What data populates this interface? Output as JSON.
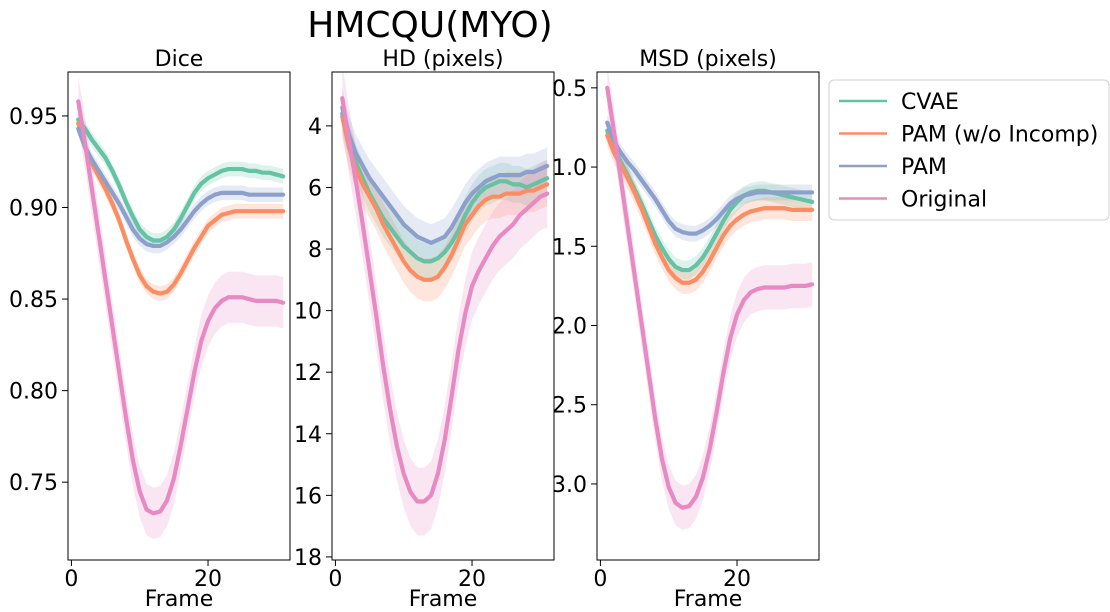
{
  "figure": {
    "suptitle": "HMCQU(MYO)"
  },
  "legend": {
    "placement": "right",
    "entries": [
      {
        "name": "CVAE",
        "color": "#66c2a5"
      },
      {
        "name": "PAM (w/o Incomp)",
        "color": "#fc8d62"
      },
      {
        "name": "PAM",
        "color": "#8da0cb"
      },
      {
        "name": "Original",
        "color": "#e78ac3"
      }
    ]
  },
  "chart_data": [
    {
      "type": "line",
      "title": "Dice",
      "xlabel": "Frame",
      "ylabel": "",
      "xlim": [
        -0.5,
        32
      ],
      "ylim": [
        0.7075,
        0.974
      ],
      "y_inverted": false,
      "xticks": [
        0,
        20
      ],
      "xtick_labels": [
        "0",
        "20"
      ],
      "yticks": [
        0.75,
        0.8,
        0.85,
        0.9,
        0.95
      ],
      "ytick_labels": [
        "0.75",
        "0.80",
        "0.85",
        "0.90",
        "0.95"
      ],
      "grid": false,
      "x": [
        1,
        2,
        3,
        4,
        5,
        6,
        7,
        8,
        9,
        10,
        11,
        12,
        13,
        14,
        15,
        16,
        17,
        18,
        19,
        20,
        21,
        22,
        23,
        24,
        25,
        26,
        27,
        28,
        29,
        30,
        31
      ],
      "series": [
        {
          "name": "CVAE",
          "color": "#66c2a5",
          "values": [
            0.948,
            0.943,
            0.937,
            0.932,
            0.927,
            0.92,
            0.912,
            0.903,
            0.895,
            0.888,
            0.884,
            0.882,
            0.882,
            0.884,
            0.888,
            0.894,
            0.901,
            0.908,
            0.913,
            0.916,
            0.918,
            0.92,
            0.921,
            0.921,
            0.921,
            0.92,
            0.92,
            0.919,
            0.919,
            0.918,
            0.917
          ],
          "band": 0.004
        },
        {
          "name": "PAM (w/o Incomp)",
          "color": "#fc8d62",
          "values": [
            0.946,
            0.933,
            0.924,
            0.917,
            0.91,
            0.902,
            0.893,
            0.882,
            0.872,
            0.863,
            0.857,
            0.854,
            0.853,
            0.854,
            0.858,
            0.864,
            0.871,
            0.878,
            0.884,
            0.89,
            0.893,
            0.896,
            0.897,
            0.898,
            0.898,
            0.898,
            0.898,
            0.898,
            0.898,
            0.898,
            0.898
          ],
          "band": 0.004
        },
        {
          "name": "PAM",
          "color": "#8da0cb",
          "values": [
            0.943,
            0.933,
            0.926,
            0.92,
            0.914,
            0.908,
            0.902,
            0.895,
            0.888,
            0.883,
            0.88,
            0.879,
            0.879,
            0.881,
            0.884,
            0.888,
            0.893,
            0.898,
            0.902,
            0.905,
            0.907,
            0.908,
            0.908,
            0.908,
            0.908,
            0.907,
            0.907,
            0.907,
            0.907,
            0.907,
            0.907
          ],
          "band": 0.004
        },
        {
          "name": "Original",
          "color": "#e78ac3",
          "values": [
            0.958,
            0.935,
            0.91,
            0.885,
            0.86,
            0.835,
            0.81,
            0.785,
            0.762,
            0.745,
            0.735,
            0.733,
            0.734,
            0.74,
            0.752,
            0.77,
            0.79,
            0.81,
            0.827,
            0.838,
            0.845,
            0.849,
            0.851,
            0.851,
            0.851,
            0.85,
            0.849,
            0.849,
            0.849,
            0.849,
            0.848
          ],
          "band": 0.014
        }
      ]
    },
    {
      "type": "line",
      "title": "HD (pixels)",
      "xlabel": "Frame",
      "ylabel": "",
      "xlim": [
        -0.5,
        32
      ],
      "ylim": [
        18.1,
        2.25
      ],
      "y_inverted": true,
      "xticks": [
        0,
        20
      ],
      "xtick_labels": [
        "0",
        "20"
      ],
      "yticks": [
        4,
        6,
        8,
        10,
        12,
        14,
        16,
        18
      ],
      "ytick_labels": [
        "4",
        "6",
        "8",
        "10",
        "12",
        "14",
        "16",
        "18"
      ],
      "grid": false,
      "x": [
        1,
        2,
        3,
        4,
        5,
        6,
        7,
        8,
        9,
        10,
        11,
        12,
        13,
        14,
        15,
        16,
        17,
        18,
        19,
        20,
        21,
        22,
        23,
        24,
        25,
        26,
        27,
        28,
        29,
        30,
        31
      ],
      "series": [
        {
          "name": "CVAE",
          "color": "#66c2a5",
          "values": [
            3.6,
            4.5,
            5.2,
            5.7,
            6.2,
            6.6,
            7.0,
            7.3,
            7.6,
            7.9,
            8.1,
            8.3,
            8.4,
            8.4,
            8.3,
            8.1,
            7.8,
            7.4,
            6.9,
            6.5,
            6.2,
            6.0,
            5.9,
            5.8,
            5.8,
            5.9,
            5.9,
            6.0,
            5.9,
            5.8,
            5.7
          ],
          "band": 0.6
        },
        {
          "name": "PAM (w/o Incomp)",
          "color": "#fc8d62",
          "values": [
            3.7,
            4.7,
            5.4,
            5.9,
            6.3,
            6.7,
            7.2,
            7.6,
            8.0,
            8.4,
            8.7,
            8.9,
            9.0,
            9.0,
            8.9,
            8.6,
            8.2,
            7.7,
            7.2,
            6.9,
            6.6,
            6.4,
            6.3,
            6.3,
            6.2,
            6.2,
            6.2,
            6.1,
            6.1,
            6.0,
            5.9
          ],
          "band": 0.7
        },
        {
          "name": "PAM",
          "color": "#8da0cb",
          "values": [
            3.4,
            4.3,
            4.9,
            5.3,
            5.7,
            6.0,
            6.3,
            6.6,
            6.9,
            7.2,
            7.4,
            7.6,
            7.7,
            7.8,
            7.7,
            7.6,
            7.3,
            6.9,
            6.5,
            6.2,
            6.0,
            5.8,
            5.7,
            5.6,
            5.6,
            5.6,
            5.6,
            5.5,
            5.5,
            5.4,
            5.3
          ],
          "band": 0.6
        },
        {
          "name": "Original",
          "color": "#e78ac3",
          "values": [
            3.1,
            4.5,
            5.8,
            7.2,
            8.7,
            10.2,
            11.8,
            13.2,
            14.4,
            15.3,
            15.9,
            16.2,
            16.2,
            16.0,
            15.3,
            14.2,
            12.8,
            11.3,
            10.1,
            9.2,
            8.7,
            8.3,
            7.9,
            7.6,
            7.4,
            7.2,
            6.9,
            6.7,
            6.5,
            6.3,
            6.2
          ],
          "band": 1.1
        }
      ]
    },
    {
      "type": "line",
      "title": "MSD (pixels)",
      "xlabel": "Frame",
      "ylabel": "",
      "xlim": [
        -0.5,
        32
      ],
      "ylim": [
        3.48,
        0.4
      ],
      "y_inverted": true,
      "xticks": [
        0,
        20
      ],
      "xtick_labels": [
        "0",
        "20"
      ],
      "yticks": [
        0.5,
        1.0,
        1.5,
        2.0,
        2.5,
        3.0
      ],
      "ytick_labels": [
        "0.5",
        "1.0",
        "1.5",
        "2.0",
        "2.5",
        "3.0"
      ],
      "grid": false,
      "x": [
        1,
        2,
        3,
        4,
        5,
        6,
        7,
        8,
        9,
        10,
        11,
        12,
        13,
        14,
        15,
        16,
        17,
        18,
        19,
        20,
        21,
        22,
        23,
        24,
        25,
        26,
        27,
        28,
        29,
        30,
        31
      ],
      "series": [
        {
          "name": "CVAE",
          "color": "#66c2a5",
          "values": [
            0.77,
            0.88,
            0.97,
            1.05,
            1.14,
            1.23,
            1.33,
            1.43,
            1.51,
            1.58,
            1.63,
            1.65,
            1.65,
            1.62,
            1.57,
            1.5,
            1.42,
            1.34,
            1.27,
            1.22,
            1.18,
            1.16,
            1.15,
            1.15,
            1.16,
            1.17,
            1.18,
            1.19,
            1.2,
            1.21,
            1.22
          ],
          "band": 0.06
        },
        {
          "name": "PAM (w/o Incomp)",
          "color": "#fc8d62",
          "values": [
            0.8,
            0.91,
            0.99,
            1.07,
            1.16,
            1.26,
            1.37,
            1.48,
            1.57,
            1.65,
            1.7,
            1.73,
            1.73,
            1.71,
            1.66,
            1.59,
            1.51,
            1.43,
            1.37,
            1.33,
            1.3,
            1.28,
            1.27,
            1.26,
            1.26,
            1.26,
            1.26,
            1.27,
            1.27,
            1.27,
            1.27
          ],
          "band": 0.07
        },
        {
          "name": "PAM",
          "color": "#8da0cb",
          "values": [
            0.72,
            0.84,
            0.91,
            0.97,
            1.02,
            1.08,
            1.14,
            1.2,
            1.27,
            1.34,
            1.39,
            1.41,
            1.42,
            1.42,
            1.4,
            1.37,
            1.33,
            1.28,
            1.23,
            1.2,
            1.18,
            1.17,
            1.16,
            1.16,
            1.16,
            1.16,
            1.16,
            1.16,
            1.16,
            1.16,
            1.16
          ],
          "band": 0.05
        },
        {
          "name": "Original",
          "color": "#e78ac3",
          "values": [
            0.5,
            0.78,
            1.08,
            1.38,
            1.68,
            1.98,
            2.28,
            2.58,
            2.84,
            3.02,
            3.12,
            3.15,
            3.14,
            3.08,
            2.96,
            2.78,
            2.55,
            2.3,
            2.08,
            1.93,
            1.84,
            1.79,
            1.77,
            1.76,
            1.76,
            1.76,
            1.76,
            1.75,
            1.75,
            1.75,
            1.74
          ],
          "band": 0.14
        }
      ]
    }
  ]
}
